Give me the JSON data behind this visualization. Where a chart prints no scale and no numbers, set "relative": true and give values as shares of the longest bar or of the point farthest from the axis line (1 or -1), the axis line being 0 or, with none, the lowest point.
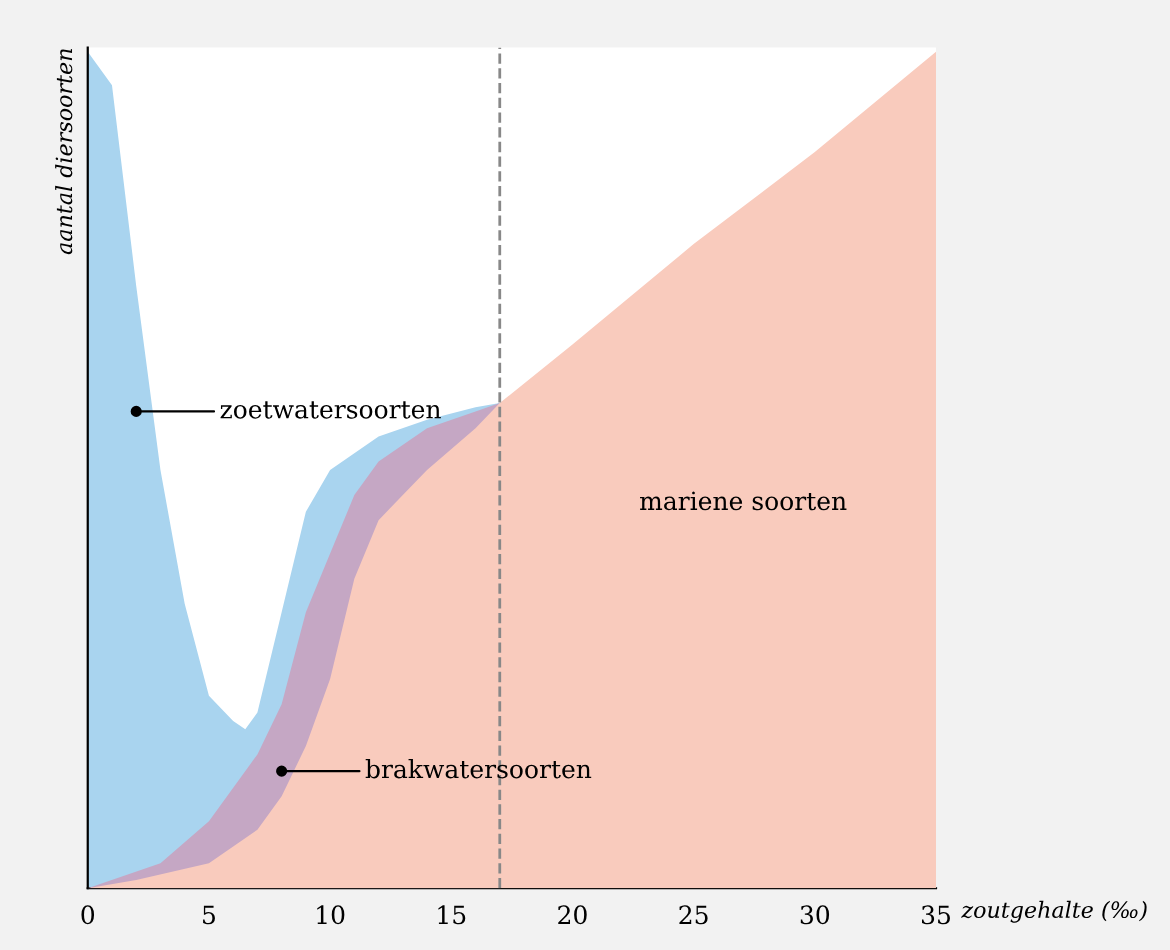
{
  "chart_data": {
    "type": "area",
    "relative": true,
    "xlabel": "zoutgehalte (‰)",
    "ylabel": "aantal diersoorten",
    "xlim": [
      0,
      35
    ],
    "xticks": [
      0,
      5,
      10,
      15,
      20,
      25,
      30,
      35
    ],
    "grid": false,
    "legend": false,
    "series": [
      {
        "x": [
          0,
          1,
          2,
          3,
          4,
          5,
          6,
          6.5,
          7,
          8,
          9,
          10,
          11,
          12,
          14,
          16,
          17
        ],
        "values": [
          1.0,
          0.96,
          0.72,
          0.5,
          0.34,
          0.23,
          0.2,
          0.19,
          0.21,
          0.33,
          0.45,
          0.5,
          0.52,
          0.54,
          0.56,
          0.575,
          0.58
        ],
        "color": "#a9d4ef"
      },
      {
        "x": [
          0,
          3,
          5,
          7,
          8,
          9,
          10,
          11,
          12,
          14,
          16,
          17
        ],
        "values": [
          0,
          0.03,
          0.08,
          0.16,
          0.22,
          0.33,
          0.4,
          0.47,
          0.51,
          0.55,
          0.57,
          0.58
        ],
        "color": "#c5a7c4"
      },
      {
        "x": [
          0,
          2,
          5,
          7,
          8,
          9,
          10,
          11,
          12,
          13,
          14,
          16,
          17,
          20,
          25,
          30,
          35
        ],
        "values": [
          0,
          0.01,
          0.03,
          0.07,
          0.11,
          0.17,
          0.25,
          0.37,
          0.44,
          0.47,
          0.5,
          0.55,
          0.58,
          0.65,
          0.77,
          0.88,
          1.0
        ],
        "color": "#f9cbbd"
      }
    ],
    "ref_lines": [
      {
        "axis": "x",
        "value": 17,
        "color": "#888888",
        "line_style": "dashed"
      }
    ],
    "annotations": [
      {
        "text": "zoetwatersoorten",
        "x": 2,
        "y": 0.57
      },
      {
        "text": "brakwatersoorten",
        "x": 8,
        "y": 0.14
      },
      "mariene soorten"
    ]
  }
}
